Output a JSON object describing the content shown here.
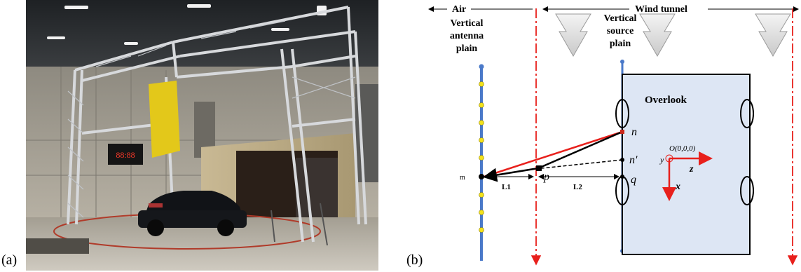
{
  "panels": {
    "a": {
      "label": "(a)"
    },
    "b": {
      "label": "(b)"
    }
  },
  "photo": {
    "scoreboard_text": "88:88"
  },
  "diagram": {
    "region_air": "Air",
    "region_wind_tunnel": "Wind tunnel",
    "antenna_plane_line1": "Vertical",
    "antenna_plane_line2": "antenna",
    "antenna_plane_line3": "plain",
    "source_plane_line1": "Vertical",
    "source_plane_line2": "source",
    "source_plane_line3": "plain",
    "overlook": "Overlook",
    "point_m": "m",
    "point_n": "n",
    "point_n_prime": "n'",
    "point_p": "p",
    "point_q": "q",
    "origin": "O(0,0,0)",
    "axis_y": "y",
    "axis_z": "z",
    "axis_x": "x",
    "dist_l1": "L1",
    "dist_l2": "L2",
    "colors": {
      "red": "#e8201c",
      "blue": "#4a79c9",
      "yellow": "#f3e21a",
      "box_fill": "#dde6f4"
    }
  }
}
